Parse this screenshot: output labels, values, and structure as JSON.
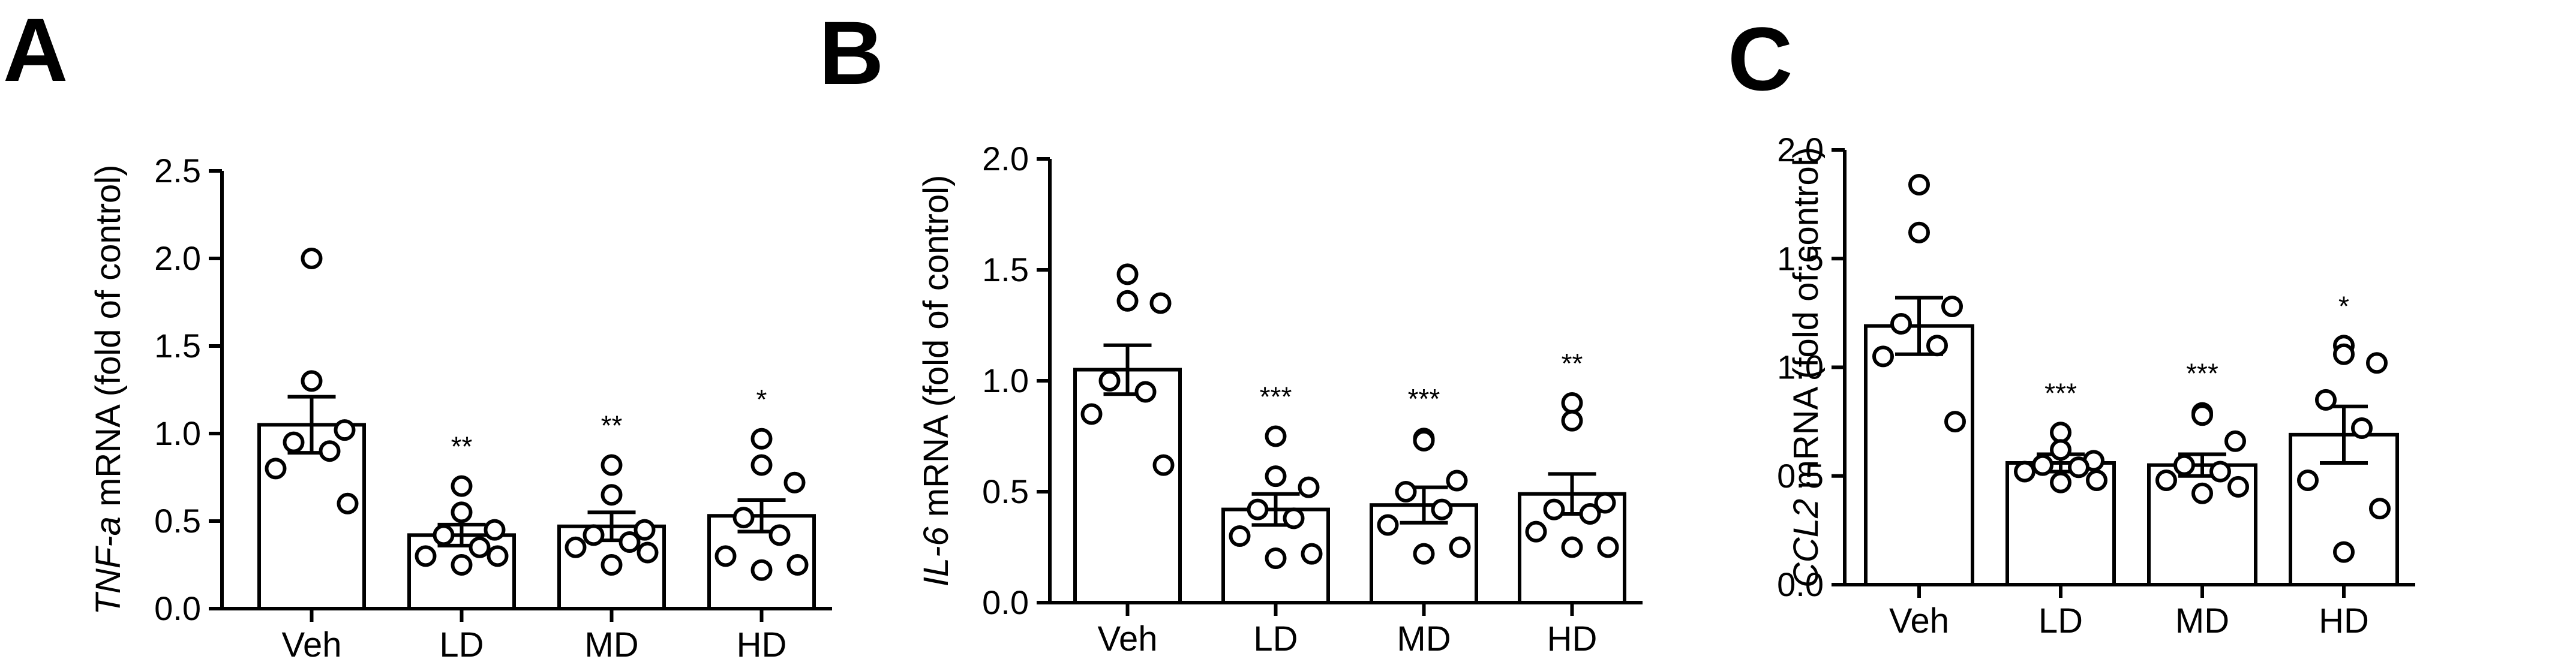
{
  "chart_data": [
    {
      "panel": "A",
      "type": "bar",
      "ylabel_gene": "TNF-a",
      "ylabel_rest": " mRNA (fold of control)",
      "categories": [
        "Veh",
        "LD",
        "MD",
        "HD"
      ],
      "values": [
        1.05,
        0.42,
        0.47,
        0.53
      ],
      "errors": [
        0.16,
        0.06,
        0.08,
        0.09
      ],
      "significance": [
        "",
        "**",
        "**",
        "*"
      ],
      "points": [
        [
          2.0,
          1.3,
          1.02,
          0.95,
          0.9,
          0.8,
          0.6
        ],
        [
          0.7,
          0.55,
          0.45,
          0.42,
          0.35,
          0.3,
          0.3,
          0.25
        ],
        [
          0.82,
          0.65,
          0.45,
          0.42,
          0.38,
          0.35,
          0.32,
          0.25
        ],
        [
          0.97,
          0.82,
          0.72,
          0.52,
          0.42,
          0.3,
          0.25,
          0.22
        ]
      ],
      "yticks": [
        "0.0",
        "0.5",
        "1.0",
        "1.5",
        "2.0",
        "2.5"
      ],
      "ylim": [
        0,
        2.5
      ]
    },
    {
      "panel": "B",
      "type": "bar",
      "ylabel_gene": "IL-6",
      "ylabel_rest": " mRNA (fold of control)",
      "categories": [
        "Veh",
        "LD",
        "MD",
        "HD"
      ],
      "values": [
        1.05,
        0.42,
        0.44,
        0.49
      ],
      "errors": [
        0.11,
        0.07,
        0.08,
        0.09
      ],
      "significance": [
        "",
        "***",
        "***",
        "**"
      ],
      "points": [
        [
          1.48,
          1.36,
          1.35,
          1.0,
          0.95,
          0.85,
          0.62
        ],
        [
          0.75,
          0.57,
          0.52,
          0.42,
          0.38,
          0.3,
          0.22,
          0.2
        ],
        [
          0.74,
          0.73,
          0.55,
          0.5,
          0.42,
          0.35,
          0.25,
          0.22
        ],
        [
          0.9,
          0.82,
          0.45,
          0.42,
          0.4,
          0.32,
          0.25,
          0.25
        ]
      ],
      "yticks": [
        "0.0",
        "0.5",
        "1.0",
        "1.5",
        "2.0"
      ],
      "ylim": [
        0,
        2.0
      ]
    },
    {
      "panel": "C",
      "type": "bar",
      "ylabel_gene": "CCL2",
      "ylabel_rest": " mRNA (fold of control)",
      "categories": [
        "Veh",
        "LD",
        "MD",
        "HD"
      ],
      "values": [
        1.19,
        0.56,
        0.55,
        0.69
      ],
      "errors": [
        0.13,
        0.04,
        0.05,
        0.13
      ],
      "significance": [
        "",
        "***",
        "***",
        "*"
      ],
      "points": [
        [
          1.84,
          1.62,
          1.28,
          1.2,
          1.1,
          1.05,
          0.75
        ],
        [
          0.7,
          0.62,
          0.57,
          0.55,
          0.54,
          0.52,
          0.48,
          0.47
        ],
        [
          0.79,
          0.78,
          0.66,
          0.55,
          0.52,
          0.48,
          0.45,
          0.42
        ],
        [
          1.1,
          1.06,
          1.02,
          0.85,
          0.72,
          0.48,
          0.35,
          0.15
        ]
      ],
      "yticks": [
        "0.0",
        "0.5",
        "1.0",
        "1.5",
        "2.0"
      ],
      "ylim": [
        0,
        2.0
      ]
    }
  ]
}
